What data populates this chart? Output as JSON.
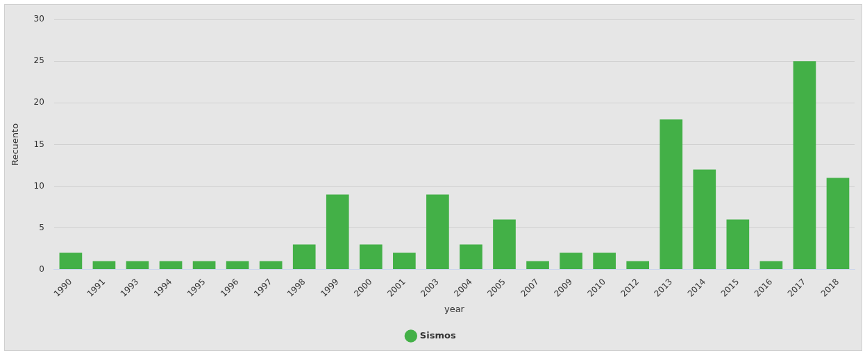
{
  "chart_data": {
    "type": "bar",
    "xlabel": "year",
    "ylabel": "Recuento",
    "categories": [
      "1990",
      "1991",
      "1993",
      "1994",
      "1995",
      "1996",
      "1997",
      "1998",
      "1999",
      "2000",
      "2001",
      "2003",
      "2004",
      "2005",
      "2007",
      "2009",
      "2010",
      "2012",
      "2013",
      "2014",
      "2015",
      "2016",
      "2017",
      "2018"
    ],
    "series": [
      {
        "name": "Sismos",
        "color": "#43b047",
        "values": [
          2,
          1,
          1,
          1,
          1,
          1,
          1,
          3,
          9,
          3,
          2,
          9,
          3,
          6,
          1,
          2,
          2,
          1,
          18,
          12,
          6,
          1,
          25,
          11
        ]
      }
    ],
    "ylim": [
      0,
      30
    ],
    "yticks": [
      0,
      5,
      10,
      15,
      20,
      25,
      30
    ],
    "grid": "y",
    "legend": "bottom"
  }
}
